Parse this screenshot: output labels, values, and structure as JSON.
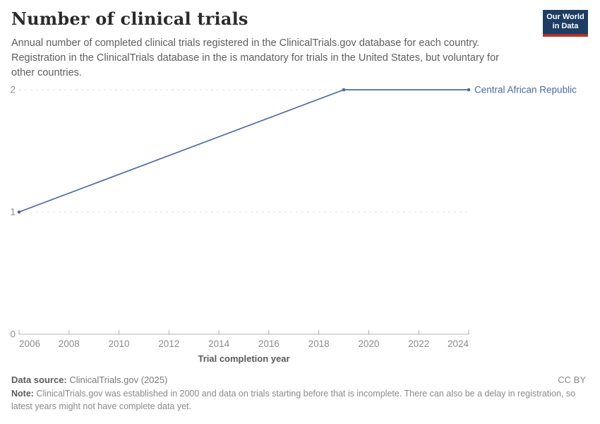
{
  "header": {
    "title": "Number of clinical trials",
    "subtitle_lines": [
      "Annual number of completed clinical trials registered in the ClinicalTrials.gov database for each country.",
      "Registration in the ClinicalTrials database in the is mandatory for trials in the United States, but voluntary for",
      "other countries."
    ],
    "logo": {
      "line1": "Our World",
      "line2": "in Data",
      "bg_color": "#1d3d63",
      "accent_color": "#b5322a"
    }
  },
  "chart_data": {
    "type": "line",
    "title": "Number of clinical trials",
    "xlabel": "Trial completion year",
    "ylabel": "",
    "x": [
      2006,
      2019,
      2024
    ],
    "series": [
      {
        "name": "Central African Republic",
        "values": [
          1,
          2,
          2
        ],
        "color": "#4a69a2"
      }
    ],
    "x_ticks": [
      2006,
      2008,
      2010,
      2012,
      2014,
      2016,
      2018,
      2020,
      2022,
      2024
    ],
    "y_ticks": [
      0,
      1,
      2
    ],
    "xlim": [
      2006,
      2024
    ],
    "ylim": [
      0,
      2
    ],
    "grid": "horizontal-dashed",
    "legend": "line-end-label",
    "grid_color": "#dcdcdc",
    "axis_color": "#b0b0b0",
    "tick_label_color": "#8c8c8c",
    "axis_title_color": "#5a5a5a"
  },
  "footer": {
    "source_label": "Data source:",
    "source_value": " ClinicalTrials.gov (2025)",
    "license": "CC BY",
    "note_label": "Note:",
    "note_value": " ClinicalTrials.gov was established in 2000 and data on trials starting before that is incomplete. There can also be a delay in registration, so latest years might not have complete data yet."
  }
}
